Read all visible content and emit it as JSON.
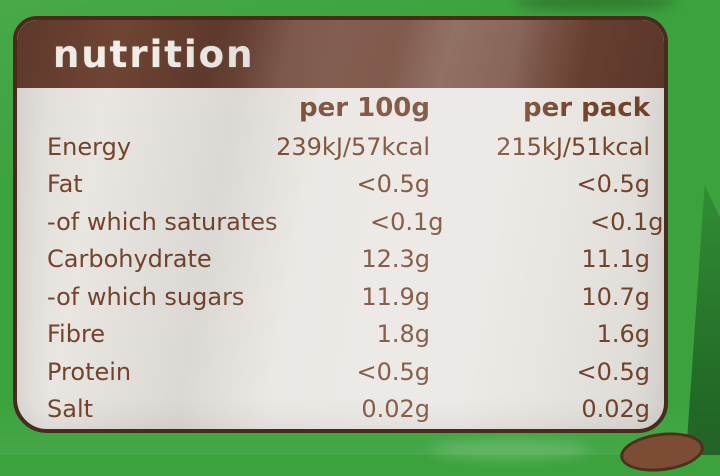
{
  "photo": {
    "package_color": "#3ba23d",
    "label_background": "#e9e6e2",
    "header_band_color": "#6f4434",
    "text_color": "#74452d",
    "outline_color": "#4a2a1d",
    "title_color": "#f3efe9"
  },
  "nutrition_label": {
    "title": "nutrition",
    "columns": {
      "col1": "per 100g",
      "col2": "per pack"
    },
    "rows": [
      {
        "name": "Energy",
        "per100g": "239kJ/57kcal",
        "perpack": "215kJ/51kcal"
      },
      {
        "name": "Fat",
        "per100g": "<0.5g",
        "perpack": "<0.5g"
      },
      {
        "name": "-of which saturates",
        "per100g": "<0.1g",
        "perpack": "<0.1g"
      },
      {
        "name": "Carbohydrate",
        "per100g": "12.3g",
        "perpack": "11.1g"
      },
      {
        "name": "-of which sugars",
        "per100g": "11.9g",
        "perpack": "10.7g"
      },
      {
        "name": "Fibre",
        "per100g": "1.8g",
        "perpack": "1.6g"
      },
      {
        "name": "Protein",
        "per100g": "<0.5g",
        "perpack": "<0.5g"
      },
      {
        "name": "Salt",
        "per100g": "0.02g",
        "perpack": "0.02g"
      }
    ]
  }
}
